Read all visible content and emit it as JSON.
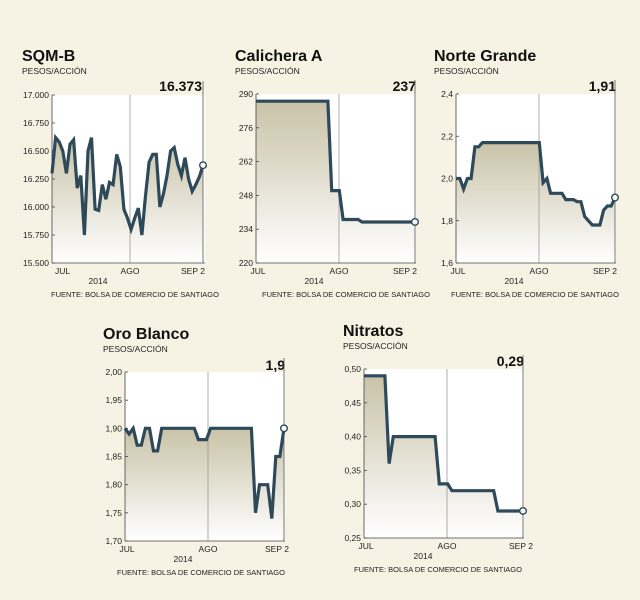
{
  "colors": {
    "background": "#f7f3e4",
    "line": "#2e4a5a",
    "fill_top": "#c9c3a8",
    "fill_bottom": "#ffffff",
    "grid": "#999999"
  },
  "chart_data": [
    {
      "type": "area",
      "id": "sqmb",
      "title": "SQM-B",
      "ylabel": "PESOS/ACCIÓN",
      "last_value": "16.373",
      "source": "FUENTE: BOLSA DE COMERCIO DE SANTIAGO",
      "year_label": "2014",
      "x_ticks": [
        "JUL",
        "AGO",
        "SEP 2"
      ],
      "y_ticks": [
        "17.000",
        "16.750",
        "16.500",
        "16.250",
        "16.000",
        "15.750",
        "15.500"
      ],
      "ylim": [
        15500,
        17000
      ],
      "values": [
        16300,
        16620,
        16580,
        16500,
        16300,
        16560,
        16600,
        16170,
        16280,
        15750,
        16500,
        16620,
        15980,
        15970,
        16200,
        16070,
        16220,
        16200,
        16470,
        16360,
        15980,
        15900,
        15800,
        15900,
        15990,
        15750,
        16100,
        16400,
        16470,
        16470,
        16000,
        16120,
        16280,
        16500,
        16530,
        16380,
        16280,
        16440,
        16250,
        16140,
        16200,
        16270,
        16373
      ]
    },
    {
      "type": "area",
      "id": "calichera",
      "title": "Calichera A",
      "ylabel": "PESOS/ACCIÓN",
      "last_value": "237",
      "source": "FUENTE: BOLSA DE COMERCIO DE SANTIAGO",
      "year_label": "2014",
      "x_ticks": [
        "JUL",
        "AGO",
        "SEP 2"
      ],
      "y_ticks": [
        "290",
        "276",
        "262",
        "248",
        "234",
        "220"
      ],
      "ylim": [
        220,
        290
      ],
      "values": [
        287,
        287,
        287,
        287,
        287,
        287,
        287,
        287,
        287,
        287,
        287,
        287,
        287,
        287,
        287,
        287,
        287,
        287,
        287,
        287,
        250,
        250,
        250,
        238,
        238,
        238,
        238,
        238,
        237,
        237,
        237,
        237,
        237,
        237,
        237,
        237,
        237,
        237,
        237,
        237,
        237,
        237,
        237
      ]
    },
    {
      "type": "area",
      "id": "nortegrande",
      "title": "Norte Grande",
      "ylabel": "PESOS/ACCIÓN",
      "last_value": "1,91",
      "source": "FUENTE: BOLSA DE COMERCIO DE SANTIAGO",
      "year_label": "2014",
      "x_ticks": [
        "JUL",
        "AGO",
        "SEP 2"
      ],
      "y_ticks": [
        "2,4",
        "2,2",
        "2,0",
        "1,8",
        "1,6"
      ],
      "ylim": [
        1.6,
        2.4
      ],
      "values": [
        2.0,
        2.0,
        1.95,
        2.0,
        2.0,
        2.15,
        2.15,
        2.17,
        2.17,
        2.17,
        2.17,
        2.17,
        2.17,
        2.17,
        2.17,
        2.17,
        2.17,
        2.17,
        2.17,
        2.17,
        2.17,
        2.17,
        2.17,
        1.98,
        2.0,
        1.93,
        1.93,
        1.93,
        1.93,
        1.9,
        1.9,
        1.9,
        1.89,
        1.89,
        1.82,
        1.8,
        1.78,
        1.78,
        1.78,
        1.85,
        1.87,
        1.87,
        1.91
      ]
    },
    {
      "type": "area",
      "id": "oroblanco",
      "title": "Oro Blanco",
      "ylabel": "PESOS/ACCIÓN",
      "last_value": "1,9",
      "source": "FUENTE: BOLSA DE COMERCIO DE SANTIAGO",
      "year_label": "2014",
      "x_ticks": [
        "JUL",
        "AGO",
        "SEP 2"
      ],
      "y_ticks": [
        "2,00",
        "1,95",
        "1,90",
        "1,85",
        "1,80",
        "1,75",
        "1,70"
      ],
      "ylim": [
        1.7,
        2.0
      ],
      "values": [
        1.9,
        1.89,
        1.9,
        1.87,
        1.87,
        1.9,
        1.9,
        1.86,
        1.86,
        1.9,
        1.9,
        1.9,
        1.9,
        1.9,
        1.9,
        1.9,
        1.9,
        1.9,
        1.88,
        1.88,
        1.88,
        1.9,
        1.9,
        1.9,
        1.9,
        1.9,
        1.9,
        1.9,
        1.9,
        1.9,
        1.9,
        1.9,
        1.75,
        1.8,
        1.8,
        1.8,
        1.74,
        1.85,
        1.85,
        1.9
      ]
    },
    {
      "type": "area",
      "id": "nitratos",
      "title": "Nitratos",
      "ylabel": "PESOS/ACCIÓN",
      "last_value": "0,29",
      "source": "FUENTE: BOLSA DE COMERCIO DE SANTIAGO",
      "year_label": "2014",
      "x_ticks": [
        "JUL",
        "AGO",
        "SEP 2"
      ],
      "y_ticks": [
        "0,50",
        "0,45",
        "0,40",
        "0,35",
        "0,30",
        "0,25"
      ],
      "ylim": [
        0.25,
        0.5
      ],
      "values": [
        0.49,
        0.49,
        0.49,
        0.49,
        0.49,
        0.49,
        0.36,
        0.4,
        0.4,
        0.4,
        0.4,
        0.4,
        0.4,
        0.4,
        0.4,
        0.4,
        0.4,
        0.4,
        0.33,
        0.33,
        0.33,
        0.32,
        0.32,
        0.32,
        0.32,
        0.32,
        0.32,
        0.32,
        0.32,
        0.32,
        0.32,
        0.32,
        0.29,
        0.29,
        0.29,
        0.29,
        0.29,
        0.29,
        0.29
      ]
    }
  ]
}
